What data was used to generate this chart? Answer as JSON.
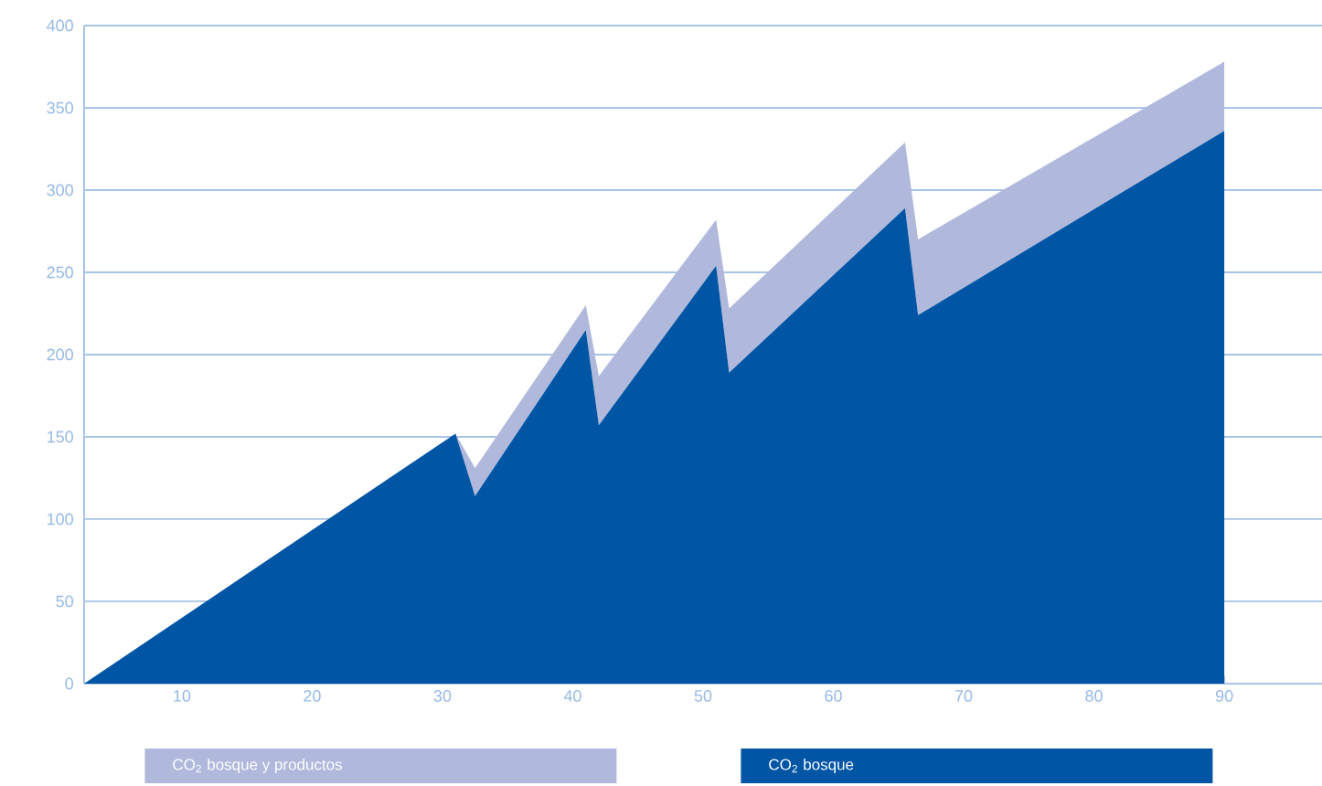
{
  "chart_data": {
    "type": "area",
    "stacked": true,
    "x": [
      2.5,
      31,
      32.5,
      41,
      42,
      51,
      52,
      65.5,
      66.5,
      90
    ],
    "series": [
      {
        "name": "CO$_{2}$ bosque",
        "color": "#0055a4",
        "values": [
          0,
          152,
          114,
          215,
          157,
          254,
          189,
          289,
          224,
          336
        ]
      },
      {
        "name": "CO$_{2}$ bosque y productos",
        "color": "#b0b9dc",
        "values": [
          0,
          0,
          17,
          15,
          30,
          28,
          39,
          40,
          46,
          42
        ]
      }
    ],
    "xlim": [
      2.5,
      97.5
    ],
    "xticks": [
      10,
      20,
      30,
      40,
      50,
      60,
      70,
      80,
      90
    ],
    "ylim": [
      0,
      400
    ],
    "yticks": [
      0,
      50,
      100,
      150,
      200,
      250,
      300,
      350,
      400
    ],
    "grid": "y",
    "legend": "bottom"
  }
}
